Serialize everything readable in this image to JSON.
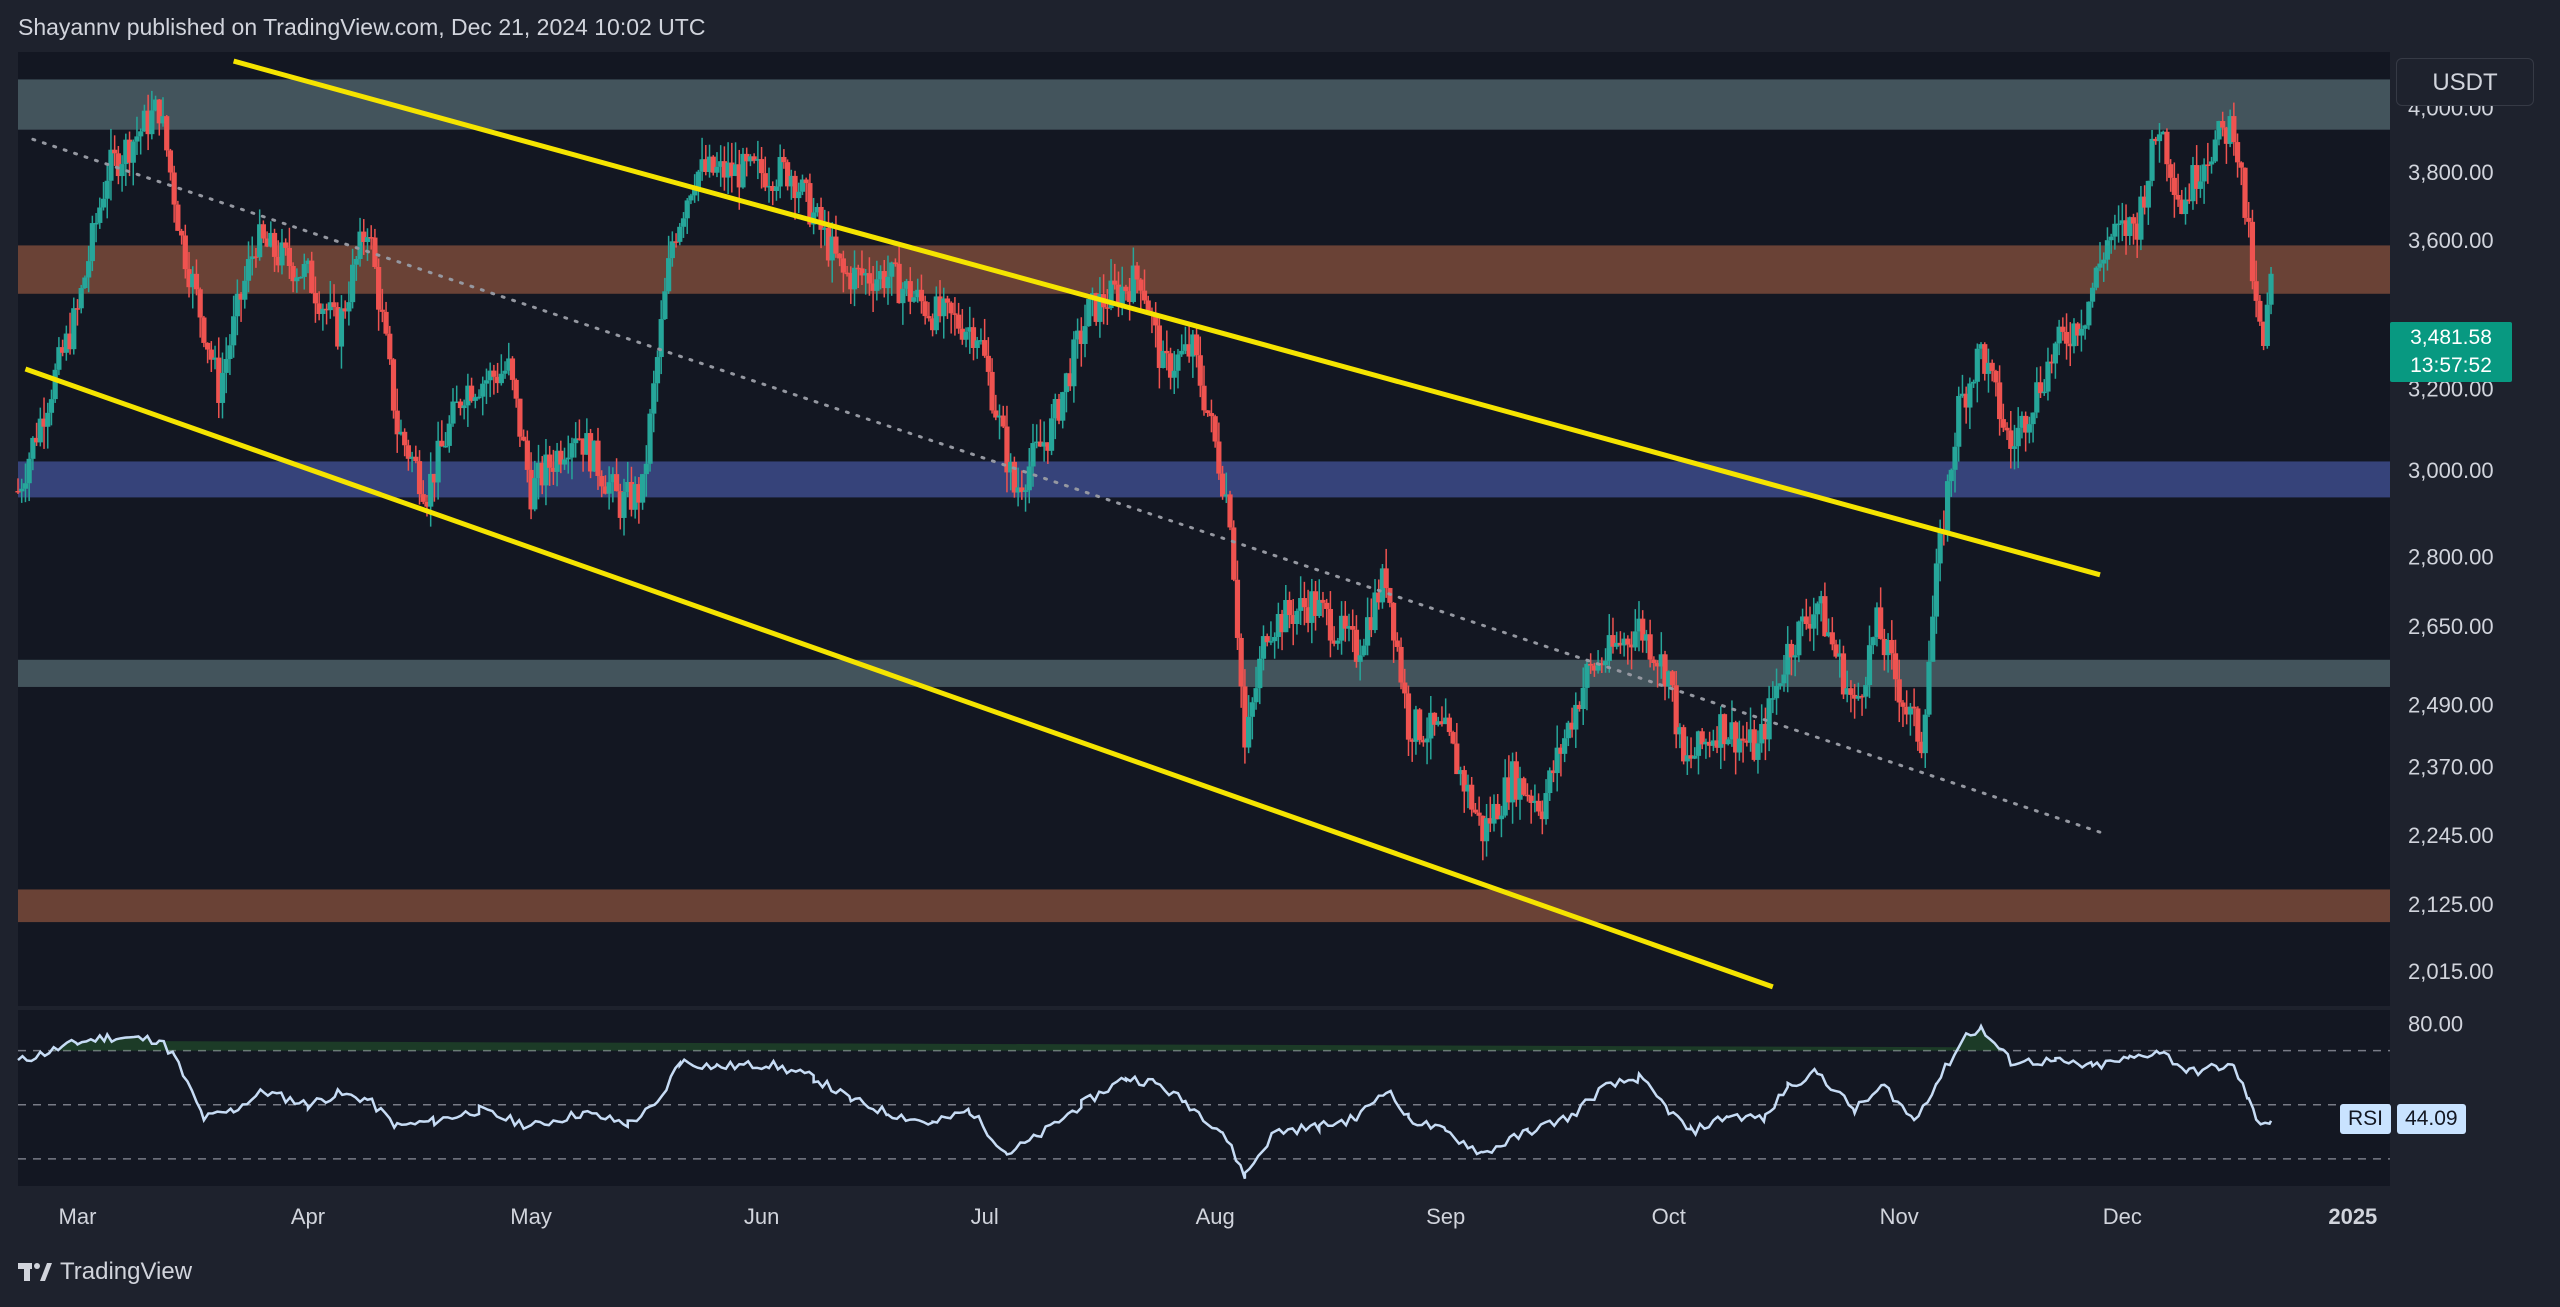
{
  "header": {
    "published_text": "Shayannv published on TradingView.com, Dec 21, 2024 10:02 UTC"
  },
  "currency": "USDT",
  "brand": {
    "name": "TradingView"
  },
  "price_badge": {
    "price": "3,481.58",
    "countdown": "13:57:52"
  },
  "rsi_badge": {
    "label": "RSI",
    "value": "44.09"
  },
  "colors": {
    "background": "#131722",
    "up_candle": "#26a69a",
    "down_candle": "#ef5350",
    "channel_line": "#f5e400",
    "zone_gray": "#4c5f66",
    "zone_brown": "#7a4a3a",
    "zone_blue": "#3d4b8a",
    "rsi_line": "#c7dcf5"
  },
  "chart_data": [
    {
      "type": "candlestick",
      "title": "",
      "y_scale": "log",
      "ylim": [
        1960,
        4180
      ],
      "y_ticks": [
        {
          "value": 4000,
          "label": "4,000.00"
        },
        {
          "value": 3800,
          "label": "3,800.00"
        },
        {
          "value": 3600,
          "label": "3,600.00"
        },
        {
          "value": 3200,
          "label": "3,200.00"
        },
        {
          "value": 3000,
          "label": "3,000.00"
        },
        {
          "value": 2800,
          "label": "2,800.00"
        },
        {
          "value": 2650,
          "label": "2,650.00"
        },
        {
          "value": 2490,
          "label": "2,490.00"
        },
        {
          "value": 2370,
          "label": "2,370.00"
        },
        {
          "value": 2245,
          "label": "2,245.00"
        },
        {
          "value": 2125,
          "label": "2,125.00"
        },
        {
          "value": 2015,
          "label": "2,015.00"
        }
      ],
      "x_ticks": [
        {
          "date": "2024-03-01",
          "label": "Mar"
        },
        {
          "date": "2024-04-01",
          "label": "Apr"
        },
        {
          "date": "2024-05-01",
          "label": "May"
        },
        {
          "date": "2024-06-01",
          "label": "Jun"
        },
        {
          "date": "2024-07-01",
          "label": "Jul"
        },
        {
          "date": "2024-08-01",
          "label": "Aug"
        },
        {
          "date": "2024-09-01",
          "label": "Sep"
        },
        {
          "date": "2024-10-01",
          "label": "Oct"
        },
        {
          "date": "2024-11-01",
          "label": "Nov"
        },
        {
          "date": "2024-12-01",
          "label": "Dec"
        },
        {
          "date": "2025-01-01",
          "label": "2025"
        }
      ],
      "x_range": [
        "2024-02-22",
        "2025-01-06"
      ],
      "price_path": [
        [
          "2024-02-22",
          2950
        ],
        [
          "2024-03-01",
          3400
        ],
        [
          "2024-03-05",
          3800
        ],
        [
          "2024-03-12",
          4000
        ],
        [
          "2024-03-15",
          3600
        ],
        [
          "2024-03-20",
          3200
        ],
        [
          "2024-03-25",
          3600
        ],
        [
          "2024-04-01",
          3500
        ],
        [
          "2024-04-05",
          3350
        ],
        [
          "2024-04-09",
          3650
        ],
        [
          "2024-04-13",
          3100
        ],
        [
          "2024-04-17",
          2950
        ],
        [
          "2024-04-22",
          3200
        ],
        [
          "2024-04-28",
          3250
        ],
        [
          "2024-05-01",
          2950
        ],
        [
          "2024-05-07",
          3100
        ],
        [
          "2024-05-13",
          2920
        ],
        [
          "2024-05-16",
          2950
        ],
        [
          "2024-05-20",
          3600
        ],
        [
          "2024-05-23",
          3800
        ],
        [
          "2024-05-29",
          3800
        ],
        [
          "2024-06-05",
          3800
        ],
        [
          "2024-06-12",
          3500
        ],
        [
          "2024-06-18",
          3500
        ],
        [
          "2024-06-24",
          3400
        ],
        [
          "2024-06-30",
          3350
        ],
        [
          "2024-07-05",
          2950
        ],
        [
          "2024-07-10",
          3100
        ],
        [
          "2024-07-15",
          3400
        ],
        [
          "2024-07-22",
          3500
        ],
        [
          "2024-07-25",
          3250
        ],
        [
          "2024-07-29",
          3300
        ],
        [
          "2024-08-03",
          2900
        ],
        [
          "2024-08-05",
          2400
        ],
        [
          "2024-08-08",
          2650
        ],
        [
          "2024-08-14",
          2700
        ],
        [
          "2024-08-20",
          2600
        ],
        [
          "2024-08-24",
          2760
        ],
        [
          "2024-08-27",
          2450
        ],
        [
          "2024-09-01",
          2430
        ],
        [
          "2024-09-06",
          2250
        ],
        [
          "2024-09-10",
          2350
        ],
        [
          "2024-09-14",
          2300
        ],
        [
          "2024-09-20",
          2550
        ],
        [
          "2024-09-27",
          2650
        ],
        [
          "2024-10-01",
          2550
        ],
        [
          "2024-10-03",
          2370
        ],
        [
          "2024-10-08",
          2450
        ],
        [
          "2024-10-13",
          2400
        ],
        [
          "2024-10-17",
          2600
        ],
        [
          "2024-10-21",
          2700
        ],
        [
          "2024-10-26",
          2480
        ],
        [
          "2024-10-29",
          2650
        ],
        [
          "2024-11-02",
          2480
        ],
        [
          "2024-11-04",
          2420
        ],
        [
          "2024-11-06",
          2750
        ],
        [
          "2024-11-09",
          3150
        ],
        [
          "2024-11-12",
          3300
        ],
        [
          "2024-11-16",
          3050
        ],
        [
          "2024-11-22",
          3300
        ],
        [
          "2024-11-26",
          3400
        ],
        [
          "2024-11-29",
          3600
        ],
        [
          "2024-12-03",
          3650
        ],
        [
          "2024-12-06",
          3950
        ],
        [
          "2024-12-09",
          3700
        ],
        [
          "2024-12-12",
          3850
        ],
        [
          "2024-12-16",
          3950
        ],
        [
          "2024-12-18",
          3600
        ],
        [
          "2024-12-19",
          3400
        ],
        [
          "2024-12-20",
          3300
        ],
        [
          "2024-12-21",
          3481.58
        ]
      ],
      "zones": [
        {
          "color": "zone_gray",
          "low": 3930,
          "high": 4090
        },
        {
          "color": "zone_brown",
          "low": 3450,
          "high": 3585
        },
        {
          "color": "zone_blue",
          "low": 2935,
          "high": 3020
        },
        {
          "color": "zone_gray",
          "low": 2525,
          "high": 2580
        },
        {
          "color": "zone_brown",
          "low": 2095,
          "high": 2150
        }
      ],
      "trend_lines": [
        {
          "style": "solid",
          "from": [
            "2024-03-22",
            4150
          ],
          "to": [
            "2024-11-28",
            2760
          ]
        },
        {
          "style": "solid",
          "from": [
            "2024-02-23",
            3250
          ],
          "to": [
            "2024-10-15",
            1990
          ]
        },
        {
          "style": "dotted",
          "from": [
            "2024-02-24",
            3900
          ],
          "to": [
            "2024-11-28",
            2250
          ]
        }
      ]
    },
    {
      "type": "line",
      "title": "RSI",
      "ylim": [
        20,
        85
      ],
      "y_ticks": [
        {
          "value": 80,
          "label": "80.00"
        }
      ],
      "guides": [
        70,
        50,
        30
      ],
      "series": [
        {
          "name": "RSI",
          "path": [
            [
              "2024-02-22",
              66
            ],
            [
              "2024-03-01",
              73
            ],
            [
              "2024-03-05",
              75
            ],
            [
              "2024-03-12",
              74
            ],
            [
              "2024-03-14",
              68
            ],
            [
              "2024-03-18",
              45
            ],
            [
              "2024-03-22",
              48
            ],
            [
              "2024-03-26",
              55
            ],
            [
              "2024-04-01",
              50
            ],
            [
              "2024-04-05",
              54
            ],
            [
              "2024-04-09",
              52
            ],
            [
              "2024-04-13",
              42
            ],
            [
              "2024-04-18",
              44
            ],
            [
              "2024-04-24",
              48
            ],
            [
              "2024-05-01",
              42
            ],
            [
              "2024-05-08",
              47
            ],
            [
              "2024-05-14",
              43
            ],
            [
              "2024-05-18",
              50
            ],
            [
              "2024-05-21",
              66
            ],
            [
              "2024-05-26",
              64
            ],
            [
              "2024-06-02",
              65
            ],
            [
              "2024-06-08",
              60
            ],
            [
              "2024-06-13",
              52
            ],
            [
              "2024-06-18",
              47
            ],
            [
              "2024-06-24",
              43
            ],
            [
              "2024-06-29",
              48
            ],
            [
              "2024-07-04",
              32
            ],
            [
              "2024-07-08",
              38
            ],
            [
              "2024-07-14",
              50
            ],
            [
              "2024-07-20",
              60
            ],
            [
              "2024-07-24",
              58
            ],
            [
              "2024-07-28",
              51
            ],
            [
              "2024-08-02",
              40
            ],
            [
              "2024-08-05",
              24
            ],
            [
              "2024-08-09",
              40
            ],
            [
              "2024-08-15",
              42
            ],
            [
              "2024-08-20",
              45
            ],
            [
              "2024-08-24",
              56
            ],
            [
              "2024-08-27",
              45
            ],
            [
              "2024-09-01",
              40
            ],
            [
              "2024-09-06",
              32
            ],
            [
              "2024-09-12",
              40
            ],
            [
              "2024-09-18",
              46
            ],
            [
              "2024-09-22",
              56
            ],
            [
              "2024-09-27",
              60
            ],
            [
              "2024-10-01",
              48
            ],
            [
              "2024-10-04",
              40
            ],
            [
              "2024-10-09",
              46
            ],
            [
              "2024-10-14",
              45
            ],
            [
              "2024-10-17",
              57
            ],
            [
              "2024-10-21",
              62
            ],
            [
              "2024-10-26",
              48
            ],
            [
              "2024-10-30",
              57
            ],
            [
              "2024-11-03",
              44
            ],
            [
              "2024-11-06",
              58
            ],
            [
              "2024-11-10",
              76
            ],
            [
              "2024-11-12",
              78
            ],
            [
              "2024-11-16",
              66
            ],
            [
              "2024-11-22",
              66
            ],
            [
              "2024-11-27",
              64
            ],
            [
              "2024-12-02",
              67
            ],
            [
              "2024-12-06",
              70
            ],
            [
              "2024-12-10",
              62
            ],
            [
              "2024-12-14",
              64
            ],
            [
              "2024-12-16",
              64
            ],
            [
              "2024-12-18",
              52
            ],
            [
              "2024-12-19",
              44
            ],
            [
              "2024-12-21",
              44.09
            ]
          ]
        }
      ]
    }
  ]
}
